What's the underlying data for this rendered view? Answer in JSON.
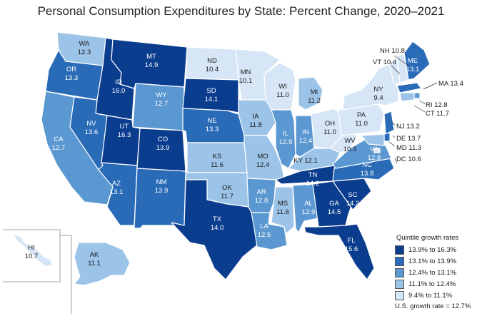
{
  "title": "Personal Consumption Expenditures by State: Percent Change, 2020–2021",
  "legend": {
    "title": "Quintile growth rates",
    "items": [
      {
        "label": "13.9% to 16.3%",
        "color": "#0b3d8f"
      },
      {
        "label": "13.1% to 13.9%",
        "color": "#2a6bb8"
      },
      {
        "label": "12.4% to 13.1%",
        "color": "#5b97d1"
      },
      {
        "label": "11.1% to 12.4%",
        "color": "#9cc3e8"
      },
      {
        "label": "9.4% to 11.1%",
        "color": "#d6e6f6"
      }
    ],
    "us_note": "U.S. growth rate = 12.7%"
  },
  "states": {
    "WA": {
      "abbr": "WA",
      "value": "12.3",
      "q": 3
    },
    "OR": {
      "abbr": "OR",
      "value": "13.3",
      "q": 1
    },
    "CA": {
      "abbr": "CA",
      "value": "12.7",
      "q": 2
    },
    "ID": {
      "abbr": "ID",
      "value": "16.0",
      "q": 0
    },
    "NV": {
      "abbr": "NV",
      "value": "13.6",
      "q": 1
    },
    "MT": {
      "abbr": "MT",
      "value": "14.9",
      "q": 0
    },
    "WY": {
      "abbr": "WY",
      "value": "12.7",
      "q": 2
    },
    "UT": {
      "abbr": "UT",
      "value": "16.3",
      "q": 0
    },
    "AZ": {
      "abbr": "AZ",
      "value": "13.1",
      "q": 1
    },
    "CO": {
      "abbr": "CO",
      "value": "13.9",
      "q": 0
    },
    "NM": {
      "abbr": "NM",
      "value": "13.9",
      "q": 1
    },
    "ND": {
      "abbr": "ND",
      "value": "10.4",
      "q": 4
    },
    "SD": {
      "abbr": "SD",
      "value": "14.1",
      "q": 0
    },
    "NE": {
      "abbr": "NE",
      "value": "13.3",
      "q": 1
    },
    "KS": {
      "abbr": "KS",
      "value": "11.6",
      "q": 3
    },
    "OK": {
      "abbr": "OK",
      "value": "11.7",
      "q": 3
    },
    "TX": {
      "abbr": "TX",
      "value": "14.0",
      "q": 0
    },
    "MN": {
      "abbr": "MN",
      "value": "10.1",
      "q": 4
    },
    "IA": {
      "abbr": "IA",
      "value": "11.8",
      "q": 3
    },
    "MO": {
      "abbr": "MO",
      "value": "12.4",
      "q": 3
    },
    "AR": {
      "abbr": "AR",
      "value": "12.8",
      "q": 2
    },
    "LA": {
      "abbr": "LA",
      "value": "12.5",
      "q": 2
    },
    "WI": {
      "abbr": "WI",
      "value": "11.0",
      "q": 4
    },
    "IL": {
      "abbr": "IL",
      "value": "12.9",
      "q": 2
    },
    "MI": {
      "abbr": "MI",
      "value": "11.2",
      "q": 3
    },
    "IN": {
      "abbr": "IN",
      "value": "12.4",
      "q": 2
    },
    "OH": {
      "abbr": "OH",
      "value": "11.0",
      "q": 4
    },
    "KY": {
      "abbr": "KY",
      "value": "12.1",
      "q": 3
    },
    "TN": {
      "abbr": "TN",
      "value": "14.2",
      "q": 0
    },
    "MS": {
      "abbr": "MS",
      "value": "11.6",
      "q": 3
    },
    "AL": {
      "abbr": "AL",
      "value": "12.9",
      "q": 2
    },
    "GA": {
      "abbr": "GA",
      "value": "14.5",
      "q": 0
    },
    "FL": {
      "abbr": "FL",
      "value": "15.6",
      "q": 0
    },
    "SC": {
      "abbr": "SC",
      "value": "14.2",
      "q": 0
    },
    "NC": {
      "abbr": "NC",
      "value": "13.8",
      "q": 1
    },
    "VA": {
      "abbr": "VA",
      "value": "12.8",
      "q": 2
    },
    "WV": {
      "abbr": "WV",
      "value": "10.3",
      "q": 4
    },
    "PA": {
      "abbr": "PA",
      "value": "11.0",
      "q": 4
    },
    "NY": {
      "abbr": "NY",
      "value": "9.4",
      "q": 4
    },
    "VT": {
      "abbr": "VT",
      "value": "10.4",
      "q": 4
    },
    "NH": {
      "abbr": "NH",
      "value": "10.8",
      "q": 4
    },
    "ME": {
      "abbr": "ME",
      "value": "13.1",
      "q": 1
    },
    "MA": {
      "abbr": "MA",
      "value": "13.4",
      "q": 1
    },
    "RI": {
      "abbr": "RI",
      "value": "12.8",
      "q": 2
    },
    "CT": {
      "abbr": "CT",
      "value": "11.7",
      "q": 3
    },
    "NJ": {
      "abbr": "NJ",
      "value": "13.2",
      "q": 1
    },
    "DE": {
      "abbr": "DE",
      "value": "13.7",
      "q": 1
    },
    "MD": {
      "abbr": "MD",
      "value": "11.3",
      "q": 3
    },
    "DC": {
      "abbr": "DC",
      "value": "10.6",
      "q": 4
    },
    "HI": {
      "abbr": "HI",
      "value": "10.7",
      "q": 4
    },
    "AK": {
      "abbr": "AK",
      "value": "11.1",
      "q": 3
    }
  }
}
